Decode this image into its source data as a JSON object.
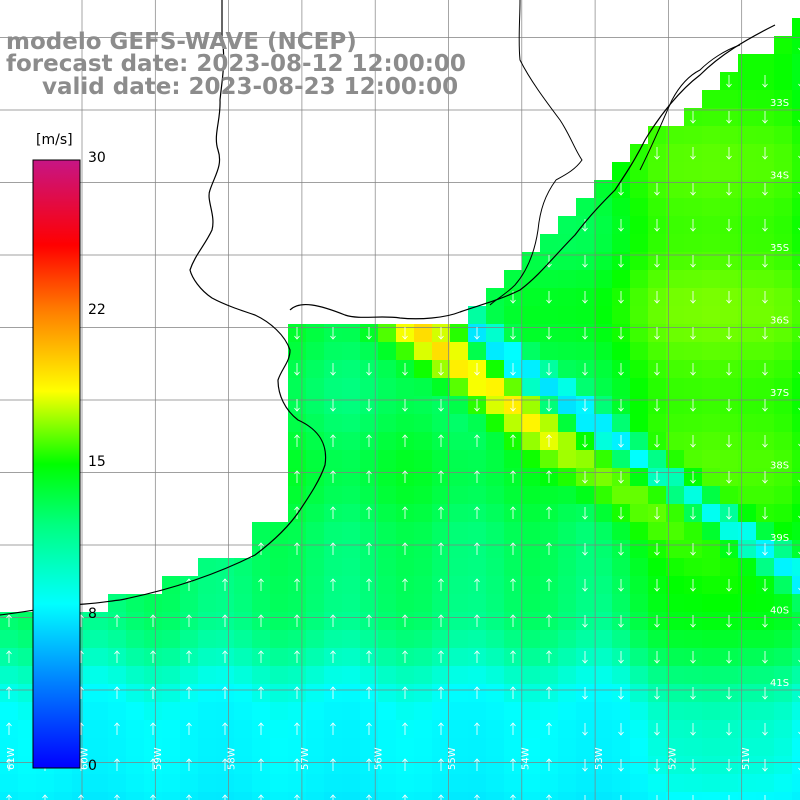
{
  "title": {
    "line1": "modelo GEFS-WAVE (NCEP)",
    "line2": "forecast date: 2023-08-12 12:00:00",
    "line3": "valid date: 2023-08-23 12:00:00"
  },
  "colorbar": {
    "units": "[m/s]",
    "ticks": [
      "30",
      "22",
      "15",
      "8",
      "0"
    ],
    "tick_values": [
      30,
      22,
      15,
      8,
      0
    ],
    "min": 0,
    "max": 30,
    "stops": [
      "#0000ff",
      "#00bfff",
      "#00ffff",
      "#00ff00",
      "#ffff00",
      "#ff8000",
      "#ff0000",
      "#c71585"
    ]
  },
  "map": {
    "lat_labels": [
      "33S",
      "34S",
      "35S",
      "36S",
      "37S",
      "38S",
      "39S",
      "40S",
      "41S"
    ],
    "lon_labels": [
      "61W",
      "60W",
      "59W",
      "58W",
      "57W",
      "56W",
      "55W",
      "54W",
      "53W",
      "52W",
      "51W"
    ],
    "land_color": "#ffffff",
    "coast_color": "#000000",
    "grid_color": "#808080",
    "arrow_color": "#ffffff",
    "field": "wind speed"
  }
}
